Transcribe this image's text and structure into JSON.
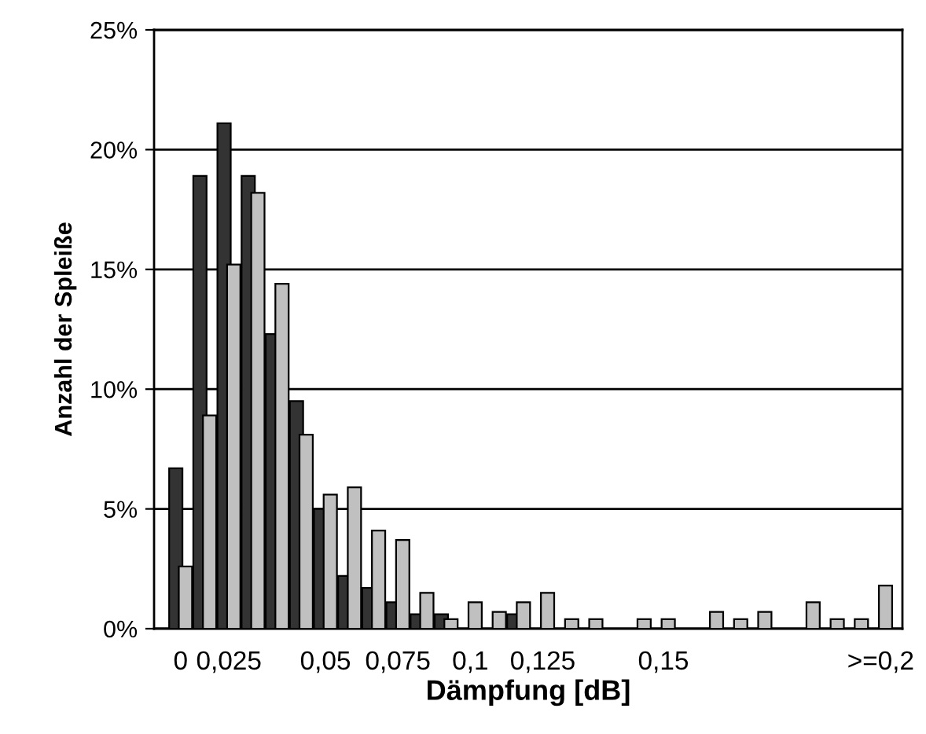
{
  "chart_data": {
    "type": "bar",
    "xlabel": "Dämpfung [dB]",
    "ylabel": "Anzahl der Spleiße",
    "categories": [
      "0",
      null,
      "0,025",
      null,
      null,
      null,
      "0,05",
      null,
      null,
      "0,075",
      null,
      null,
      "0,1",
      null,
      null,
      "0,125",
      null,
      null,
      null,
      null,
      "0,15",
      null,
      null,
      null,
      null,
      null,
      null,
      null,
      null,
      ">=0,2"
    ],
    "series": [
      {
        "color": "#333333",
        "values": [
          6.7,
          18.9,
          21.1,
          18.9,
          12.3,
          9.5,
          5.0,
          2.2,
          1.7,
          1.1,
          0.6,
          0.6,
          null,
          null,
          0.6,
          null,
          null,
          null,
          null,
          null,
          null,
          null,
          null,
          null,
          null,
          null,
          null,
          null,
          null,
          null
        ]
      },
      {
        "color": "#c0c0c0",
        "values": [
          2.6,
          8.9,
          15.2,
          18.2,
          14.4,
          8.1,
          5.6,
          5.9,
          4.1,
          3.7,
          1.5,
          0.4,
          1.1,
          0.7,
          1.1,
          1.5,
          0.4,
          0.4,
          null,
          0.4,
          0.4,
          null,
          0.7,
          0.4,
          0.7,
          null,
          1.1,
          0.4,
          0.4,
          1.8
        ]
      }
    ],
    "ylim": [
      0,
      25
    ],
    "yticks": [
      {
        "value": 0,
        "label": "0%"
      },
      {
        "value": 5,
        "label": "5%"
      },
      {
        "value": 10,
        "label": "10%"
      },
      {
        "value": 15,
        "label": "15%"
      },
      {
        "value": 20,
        "label": "20%"
      },
      {
        "value": 25,
        "label": "25%"
      }
    ],
    "grid": "y"
  }
}
